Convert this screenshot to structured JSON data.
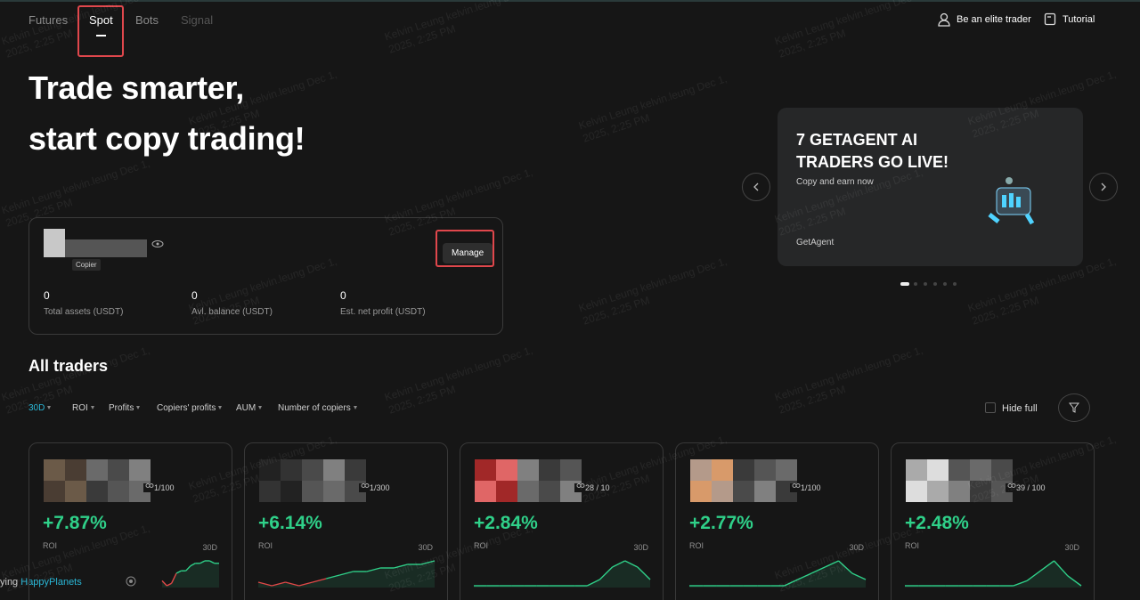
{
  "nav": {
    "tabs": [
      "Futures",
      "Spot",
      "Bots",
      "Signal"
    ],
    "active": 1,
    "elite": "Be an elite trader",
    "tutorial": "Tutorial"
  },
  "hero": {
    "line1": "Trade smarter,",
    "line2": "start copy trading!"
  },
  "account": {
    "badge": "Copier",
    "manage": "Manage",
    "stats": [
      {
        "value": "0",
        "label": "Total assets (USDT)"
      },
      {
        "value": "0",
        "label": "Avl. balance (USDT)"
      },
      {
        "value": "0",
        "label": "Est. net profit (USDT)"
      }
    ]
  },
  "banner": {
    "title_line1": "7 GETAGENT AI",
    "title_line2": "TRADERS GO LIVE!",
    "subtitle": "Copy and earn now",
    "brand": "GetAgent"
  },
  "traders": {
    "title": "All traders",
    "period": "30D",
    "sorts": [
      "ROI",
      "Profits",
      "Copiers' profits",
      "AUM",
      "Number of copiers"
    ],
    "hide_full": "Hide full",
    "roi_label": "ROI",
    "chart_period": "30D",
    "copying_prefix": "ying",
    "copying_name": "HappyPlanets",
    "cards": [
      {
        "copiers": "1/100",
        "roi": "+7.87%",
        "spark": [
          -1,
          -3,
          -2,
          2,
          3,
          3,
          5,
          6,
          6,
          7,
          7,
          6,
          6
        ]
      },
      {
        "copiers": "1/300",
        "roi": "+6.14%",
        "spark": [
          -1,
          -2,
          -1,
          -2,
          -1,
          0,
          1,
          2,
          2,
          3,
          3,
          4,
          4,
          5
        ]
      },
      {
        "copiers": "28 / 10",
        "roi": "+2.84%",
        "spark": [
          0,
          0,
          0,
          0,
          0,
          0,
          0,
          0,
          0,
          0,
          1,
          3,
          4,
          3,
          1
        ]
      },
      {
        "copiers": "1/100",
        "roi": "+2.77%",
        "spark": [
          0,
          0,
          0,
          0,
          0,
          0,
          0,
          0,
          1,
          2,
          3,
          4,
          2,
          1
        ]
      },
      {
        "copiers": "39 / 100",
        "roi": "+2.48%",
        "spark": [
          0,
          0,
          0,
          0,
          0,
          0,
          0,
          0,
          0,
          1,
          3,
          5,
          2,
          0
        ]
      }
    ]
  },
  "watermark": {
    "line1": "Kelvin Leung kelvin.leung Dec 1,",
    "line2": "2025, 2:25 PM"
  }
}
